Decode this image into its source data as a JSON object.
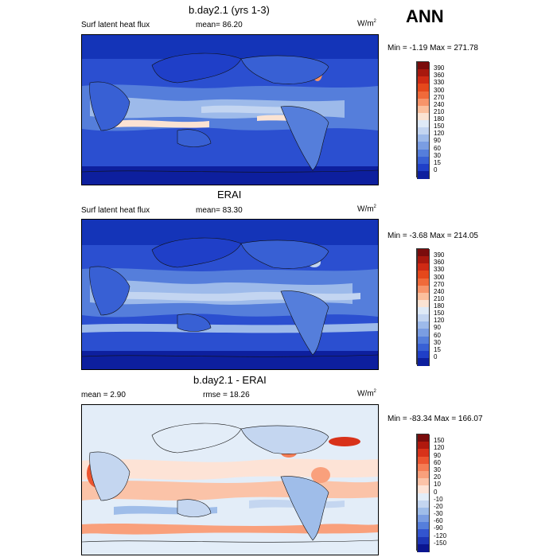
{
  "season": "ANN",
  "panels": [
    {
      "title": "b.day2.1 (yrs 1-3)",
      "left_label": "Surf latent heat flux",
      "mid_label": "mean=  86.20",
      "units": "W/m",
      "units_sup": "2",
      "minmax": "Min =  -1.19 Max = 271.78",
      "colorbar_ticks": [
        "390",
        "360",
        "330",
        "300",
        "270",
        "240",
        "210",
        "180",
        "150",
        "120",
        "90",
        "60",
        "30",
        "15",
        "0"
      ],
      "colorbar_colors": [
        "#7a0c0c",
        "#a8180e",
        "#cf2a14",
        "#e5481c",
        "#f06a3a",
        "#f7946a",
        "#fbbf9d",
        "#fbe3d3",
        "#dfeaf7",
        "#c3d5f1",
        "#9dbaea",
        "#7a9de2",
        "#557edb",
        "#3860d4",
        "#1f3fc8",
        "#0d1f9e"
      ]
    },
    {
      "title": "ERAI",
      "left_label": "Surf latent heat flux",
      "mid_label": "mean=  83.30",
      "units": "W/m",
      "units_sup": "2",
      "minmax": "Min =  -3.68 Max = 214.05",
      "colorbar_ticks": [
        "390",
        "360",
        "330",
        "300",
        "270",
        "240",
        "210",
        "180",
        "150",
        "120",
        "90",
        "60",
        "30",
        "15",
        "0"
      ],
      "colorbar_colors": [
        "#7a0c0c",
        "#a8180e",
        "#cf2a14",
        "#e5481c",
        "#f06a3a",
        "#f7946a",
        "#fbbf9d",
        "#fbe3d3",
        "#dfeaf7",
        "#c3d5f1",
        "#9dbaea",
        "#7a9de2",
        "#557edb",
        "#3860d4",
        "#1f3fc8",
        "#0d1f9e"
      ]
    },
    {
      "title": "b.day2.1 - ERAI",
      "left_label": "mean =   2.90",
      "mid_label": "rmse =  18.26",
      "units": "W/m",
      "units_sup": "2",
      "minmax": "Min = -83.34 Max = 166.07",
      "colorbar_ticks": [
        "150",
        "120",
        "90",
        "60",
        "30",
        "20",
        "10",
        "0",
        "-10",
        "-20",
        "-30",
        "-60",
        "-90",
        "-120",
        "-150"
      ],
      "colorbar_colors": [
        "#7a0c0c",
        "#b0180e",
        "#d8321a",
        "#ec5530",
        "#f57d55",
        "#f9a07c",
        "#fbc3a8",
        "#fde3d6",
        "#e3edf8",
        "#c4d6f0",
        "#9fbde9",
        "#7a9de2",
        "#557edb",
        "#3355cf",
        "#1d35b5",
        "#0b1590"
      ]
    }
  ]
}
